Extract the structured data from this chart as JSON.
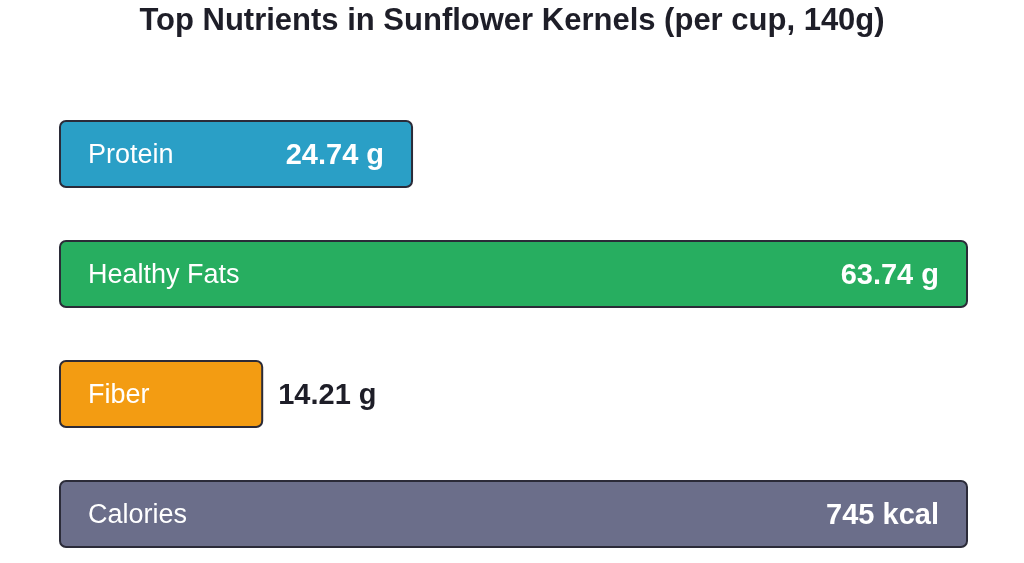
{
  "chart_data": [
    {
      "type": "bar",
      "orientation": "horizontal",
      "title": "Top Nutrients in Sunflower Kernels (per cup, 140g)",
      "categories": [
        "Protein",
        "Healthy Fats",
        "Fiber"
      ],
      "values": [
        24.74,
        63.74,
        14.21
      ],
      "value_labels": [
        "24.74 g",
        "63.74 g",
        "14.21 g"
      ],
      "colors": [
        "#2a9fc6",
        "#27ae60",
        "#f39c12"
      ]
    },
    {
      "type": "bar",
      "orientation": "horizontal",
      "categories": [
        "Calories"
      ],
      "values": [
        745
      ],
      "value_labels": [
        "745 kcal"
      ],
      "colors": [
        "#6b6e8a"
      ]
    }
  ]
}
